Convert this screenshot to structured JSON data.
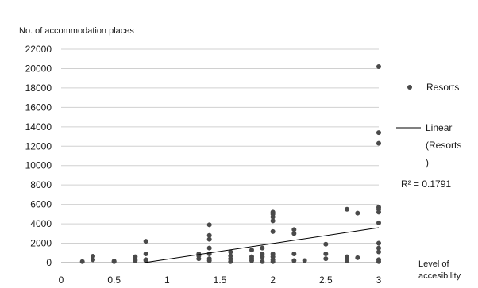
{
  "chart_data": {
    "type": "scatter",
    "ylabel": "No. of accommodation places",
    "xlabel": [
      "Level of",
      "accesibility"
    ],
    "xlim": [
      0,
      3
    ],
    "ylim": [
      0,
      22000
    ],
    "x_ticks": [
      "0",
      "0.5",
      "1",
      "1.5",
      "2",
      "2.5",
      "3"
    ],
    "y_ticks": [
      "0",
      "2000",
      "4000",
      "6000",
      "8000",
      "10000",
      "12000",
      "14000",
      "16000",
      "18000",
      "20000",
      "22000"
    ],
    "grid": "horizontal",
    "legend": [
      "Resorts",
      "Linear",
      "(Resorts",
      ")"
    ],
    "r_squared": "R² = 0.1791",
    "point_color": "#4a4a4a",
    "series": {
      "points": [
        [
          0.2,
          100
        ],
        [
          0.3,
          300
        ],
        [
          0.3,
          650
        ],
        [
          0.5,
          100
        ],
        [
          0.5,
          150
        ],
        [
          0.7,
          200
        ],
        [
          0.7,
          350
        ],
        [
          0.7,
          600
        ],
        [
          0.8,
          200
        ],
        [
          0.8,
          300
        ],
        [
          0.8,
          900
        ],
        [
          0.8,
          2200
        ],
        [
          1.3,
          400
        ],
        [
          1.3,
          700
        ],
        [
          1.3,
          900
        ],
        [
          1.4,
          200
        ],
        [
          1.4,
          400
        ],
        [
          1.4,
          900
        ],
        [
          1.4,
          1500
        ],
        [
          1.4,
          2400
        ],
        [
          1.4,
          2800
        ],
        [
          1.4,
          3900
        ],
        [
          1.6,
          100
        ],
        [
          1.6,
          400
        ],
        [
          1.6,
          700
        ],
        [
          1.6,
          1100
        ],
        [
          1.8,
          200
        ],
        [
          1.8,
          400
        ],
        [
          1.8,
          600
        ],
        [
          1.8,
          1300
        ],
        [
          1.9,
          100
        ],
        [
          1.9,
          600
        ],
        [
          1.9,
          900
        ],
        [
          1.9,
          1500
        ],
        [
          2.0,
          100
        ],
        [
          2.0,
          300
        ],
        [
          2.0,
          600
        ],
        [
          2.0,
          900
        ],
        [
          2.0,
          3200
        ],
        [
          2.0,
          4300
        ],
        [
          2.0,
          4700
        ],
        [
          2.0,
          5000
        ],
        [
          2.0,
          5200
        ],
        [
          2.2,
          200
        ],
        [
          2.2,
          900
        ],
        [
          2.2,
          3000
        ],
        [
          2.2,
          3400
        ],
        [
          2.3,
          200
        ],
        [
          2.5,
          400
        ],
        [
          2.5,
          900
        ],
        [
          2.5,
          1900
        ],
        [
          2.7,
          200
        ],
        [
          2.7,
          400
        ],
        [
          2.7,
          600
        ],
        [
          2.7,
          5500
        ],
        [
          2.8,
          500
        ],
        [
          2.8,
          5100
        ],
        [
          3.0,
          100
        ],
        [
          3.0,
          300
        ],
        [
          3.0,
          1100
        ],
        [
          3.0,
          1500
        ],
        [
          3.0,
          2000
        ],
        [
          3.0,
          4100
        ],
        [
          3.0,
          5200
        ],
        [
          3.0,
          5500
        ],
        [
          3.0,
          5700
        ],
        [
          3.0,
          12300
        ],
        [
          3.0,
          13400
        ],
        [
          3.0,
          20200
        ]
      ],
      "trendline": [
        [
          0.79,
          0
        ],
        [
          3.0,
          3600
        ]
      ]
    }
  }
}
